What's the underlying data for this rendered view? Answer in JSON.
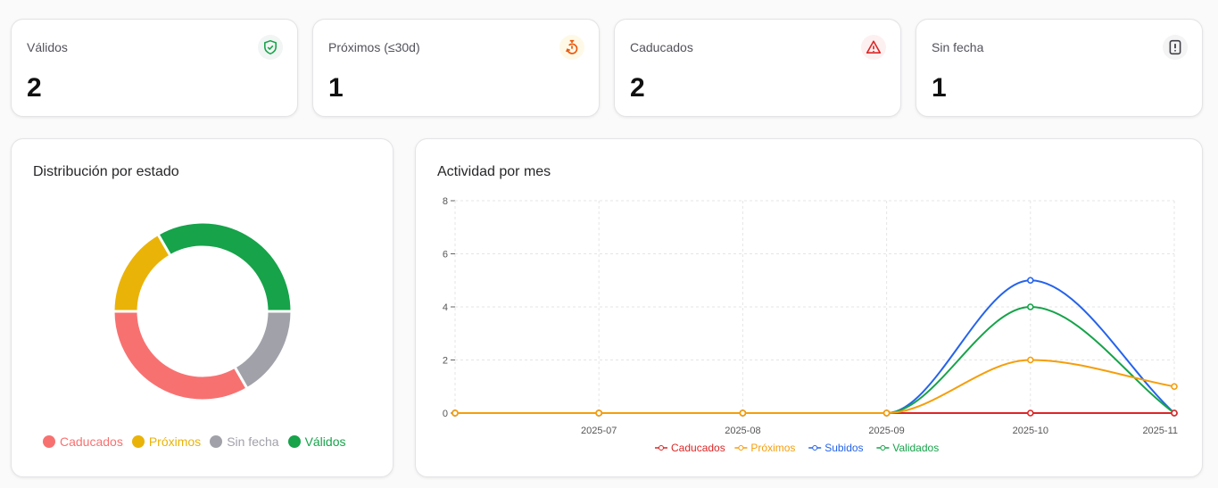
{
  "stats": [
    {
      "label": "Válidos",
      "value": "2",
      "icon": "shield-check-icon",
      "color": "#16a34a",
      "bg": "#f1f5f4"
    },
    {
      "label": "Próximos (≤30d)",
      "value": "1",
      "icon": "timer-icon",
      "color": "#ea580c",
      "bg": "#fef9e7"
    },
    {
      "label": "Caducados",
      "value": "2",
      "icon": "alert-triangle-icon",
      "color": "#dc2626",
      "bg": "#fdf0f0"
    },
    {
      "label": "Sin fecha",
      "value": "1",
      "icon": "file-alert-icon",
      "color": "#3f3f46",
      "bg": "#f4f4f5"
    }
  ],
  "donut": {
    "title": "Distribución por estado",
    "chart_data": {
      "type": "pie",
      "slices": [
        {
          "name": "Caducados",
          "value": 2,
          "color": "#f87171"
        },
        {
          "name": "Próximos",
          "value": 1,
          "color": "#eab308"
        },
        {
          "name": "Sin fecha",
          "value": 1,
          "color": "#a1a1aa"
        },
        {
          "name": "Válidos",
          "value": 2,
          "color": "#16a34a"
        }
      ]
    }
  },
  "line": {
    "title": "Actividad por mes",
    "chart_data": {
      "type": "line",
      "categories": [
        "",
        "2025-07",
        "2025-08",
        "2025-09",
        "2025-10",
        "2025-11"
      ],
      "ylim": [
        0,
        8
      ],
      "yticks": [
        0,
        2,
        4,
        6,
        8
      ],
      "grid": true,
      "legend": "bottom",
      "series": [
        {
          "name": "Caducados",
          "color": "#dc2626",
          "values": [
            0,
            0,
            0,
            0,
            0,
            0
          ]
        },
        {
          "name": "Próximos",
          "color": "#f59e0b",
          "values": [
            0,
            0,
            0,
            0,
            2,
            1
          ]
        },
        {
          "name": "Subidos",
          "color": "#2563eb",
          "values": [
            0,
            0,
            0,
            0,
            5,
            0
          ]
        },
        {
          "name": "Validados",
          "color": "#16a34a",
          "values": [
            0,
            0,
            0,
            0,
            4,
            0
          ]
        }
      ]
    }
  }
}
